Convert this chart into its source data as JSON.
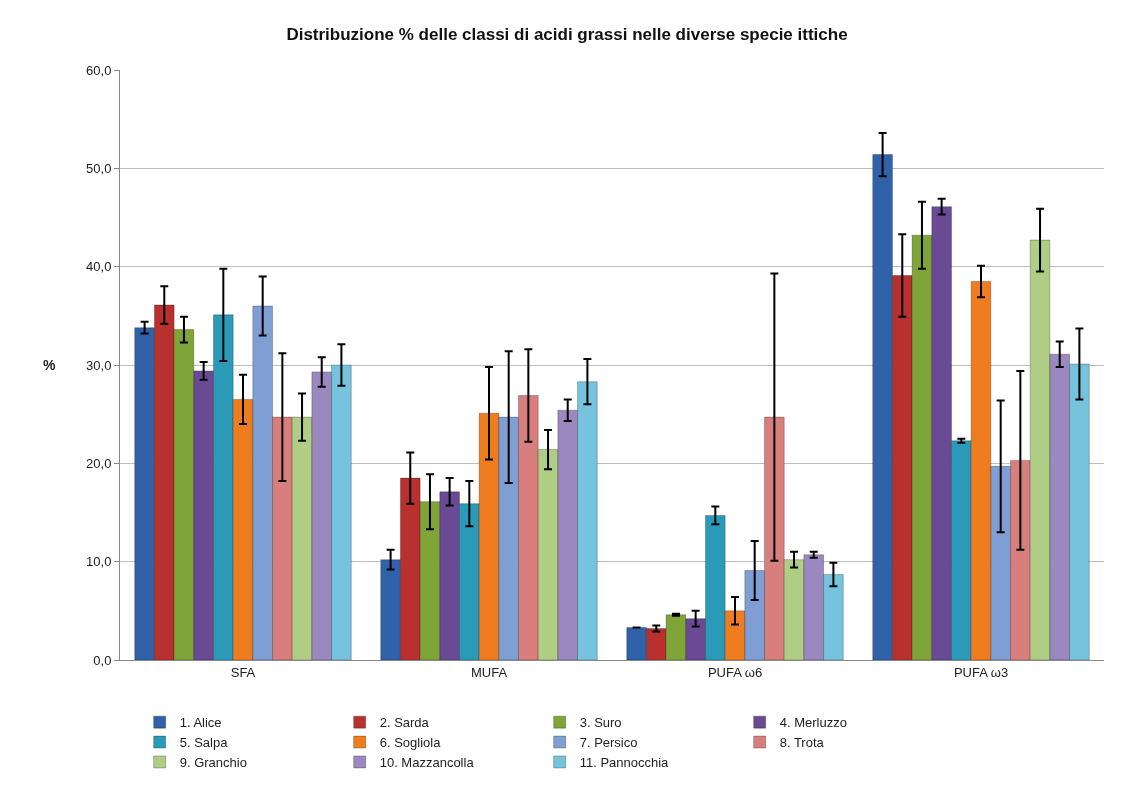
{
  "chart_data": {
    "type": "bar",
    "title": "Distribuzione % delle classi di acidi grassi nelle diverse specie ittiche",
    "ylabel": "%",
    "categories": [
      "SFA",
      "MUFA",
      "PUFA ω6",
      "PUFA ω3"
    ],
    "ylim": [
      0,
      60
    ],
    "yticks": [
      {
        "value": 0,
        "label": "0,0"
      },
      {
        "value": 10,
        "label": "10,0"
      },
      {
        "value": 20,
        "label": "20,0"
      },
      {
        "value": 30,
        "label": "30,0"
      },
      {
        "value": 40,
        "label": "40,0"
      },
      {
        "value": 50,
        "label": "50,0"
      },
      {
        "value": 60,
        "label": "60,0"
      }
    ],
    "grid": "y",
    "legend": "bottom",
    "series": [
      {
        "name": "1. Alice",
        "color": "#2f62a8",
        "values": [
          33.8,
          10.2,
          3.3,
          51.4
        ],
        "errors": [
          0.6,
          1.0,
          null,
          2.2
        ]
      },
      {
        "name": "2. Sarda",
        "color": "#b8312f",
        "values": [
          36.1,
          18.5,
          3.2,
          39.1
        ],
        "errors": [
          1.9,
          2.6,
          0.3,
          4.2
        ]
      },
      {
        "name": "3. Suro",
        "color": "#7fa437",
        "values": [
          33.6,
          16.1,
          4.6,
          43.2
        ],
        "errors": [
          1.3,
          2.8,
          0.1,
          3.4
        ]
      },
      {
        "name": "4. Merluzzo",
        "color": "#6a4a94",
        "values": [
          29.4,
          17.1,
          4.2,
          46.1
        ],
        "errors": [
          0.9,
          1.4,
          0.8,
          0.8
        ]
      },
      {
        "name": "5. Salpa",
        "color": "#2a9ab8",
        "values": [
          35.1,
          15.9,
          14.7,
          22.3
        ],
        "errors": [
          4.7,
          2.3,
          0.9,
          0.2
        ]
      },
      {
        "name": "6. Sogliola",
        "color": "#ef7d1f",
        "values": [
          26.5,
          25.1,
          5.0,
          38.5
        ],
        "errors": [
          2.5,
          4.7,
          1.4,
          1.6
        ]
      },
      {
        "name": "7. Persico",
        "color": "#7f9fd4",
        "values": [
          36.0,
          24.7,
          9.1,
          19.7
        ],
        "errors": [
          3.0,
          6.7,
          3.0,
          6.7
        ]
      },
      {
        "name": "8. Trota",
        "color": "#d87f7e",
        "values": [
          24.7,
          26.9,
          24.7,
          20.3
        ],
        "errors": [
          6.5,
          4.7,
          14.6,
          9.1
        ]
      },
      {
        "name": "9. Granchio",
        "color": "#b0cd86",
        "values": [
          24.7,
          21.4,
          10.2,
          42.7
        ],
        "errors": [
          2.4,
          2.0,
          0.8,
          3.2
        ]
      },
      {
        "name": "10. Mazzancolla",
        "color": "#9b88bf",
        "values": [
          29.3,
          25.4,
          10.7,
          31.1
        ],
        "errors": [
          1.5,
          1.1,
          0.3,
          1.3
        ]
      },
      {
        "name": "11. Pannocchia",
        "color": "#76c3dd",
        "values": [
          30.0,
          28.3,
          8.7,
          30.1
        ],
        "errors": [
          2.1,
          2.3,
          1.2,
          3.6
        ]
      }
    ]
  }
}
